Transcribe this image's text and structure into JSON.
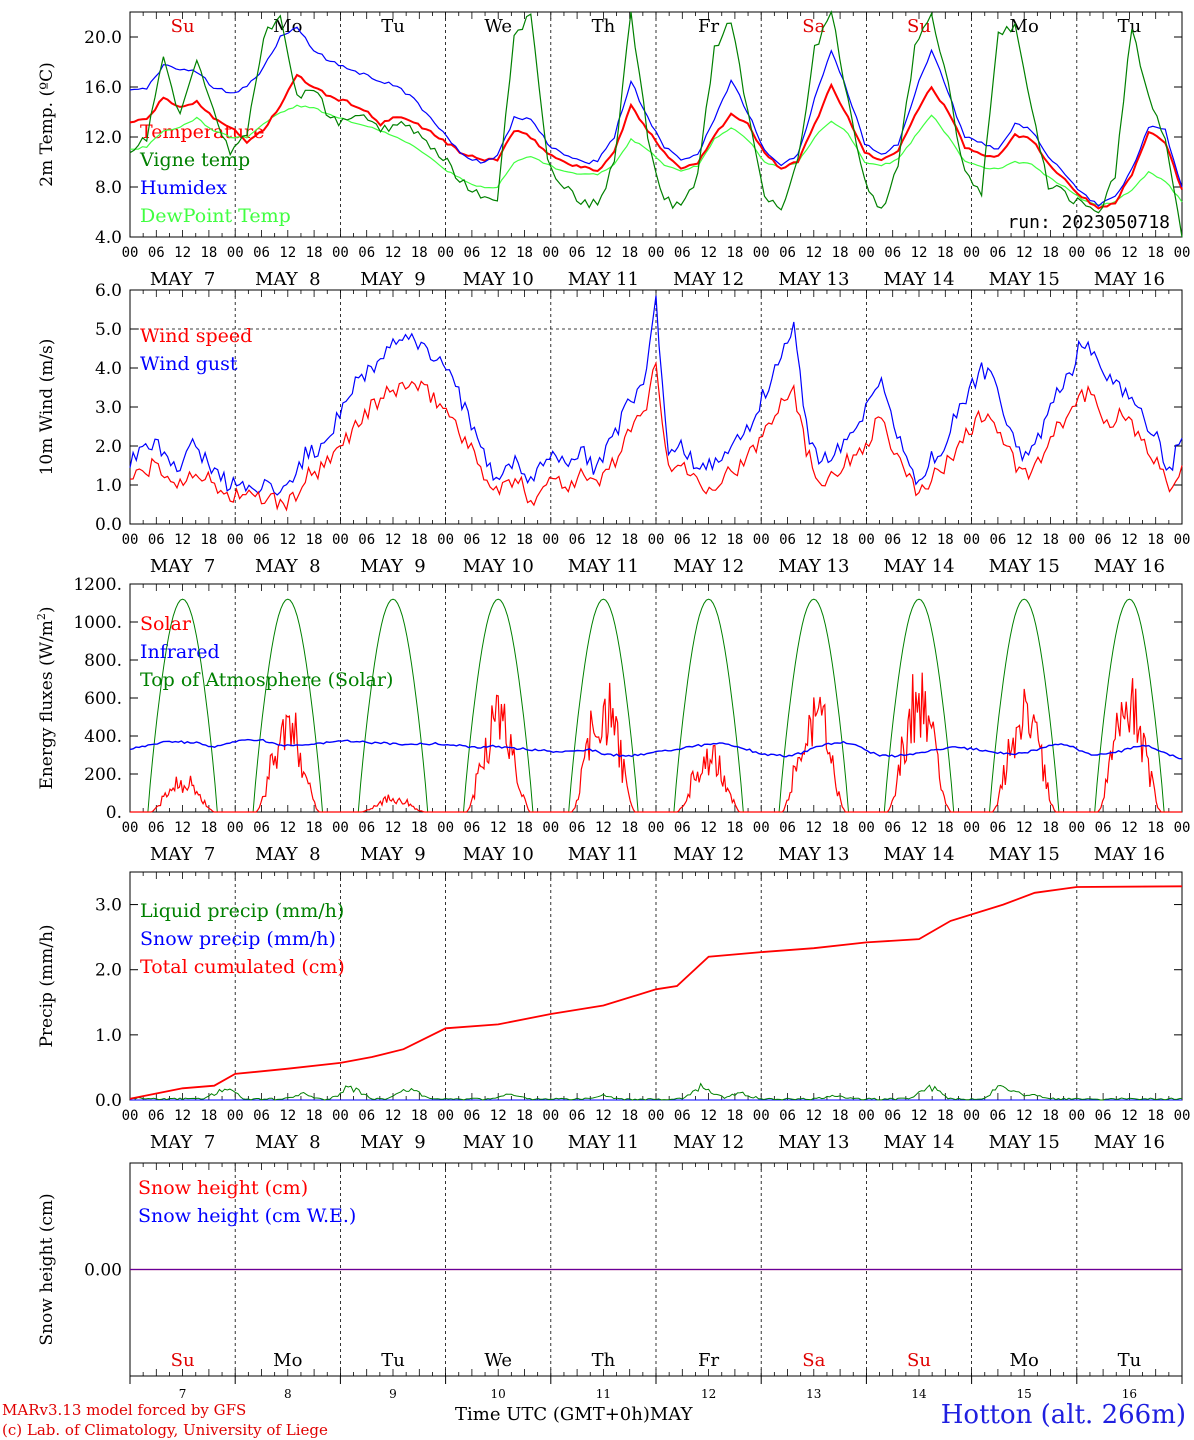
{
  "station": "Hotton (alt. 266m)",
  "credits": [
    "MARv3.13 model forced by GFS",
    "(c) Lab. of Climatology, University of Liege"
  ],
  "time_axis_label": "Time UTC (GMT+0h)",
  "month_label": "MAY",
  "run_label": "run: 2023050718",
  "hour_ticks": [
    "00",
    "06",
    "12",
    "18"
  ],
  "date_labels": [
    "MAY  7",
    "MAY  8",
    "MAY  9",
    "MAY 10",
    "MAY 11",
    "MAY 12",
    "MAY 13",
    "MAY 14",
    "MAY 15",
    "MAY 16"
  ],
  "day_numbers": [
    "7",
    "8",
    "9",
    "10",
    "11",
    "12",
    "13",
    "14",
    "15",
    "16"
  ],
  "weekdays": [
    {
      "label": "Su",
      "color": "#e00000"
    },
    {
      "label": "Mo",
      "color": "#000000"
    },
    {
      "label": "Tu",
      "color": "#000000"
    },
    {
      "label": "We",
      "color": "#000000"
    },
    {
      "label": "Th",
      "color": "#000000"
    },
    {
      "label": "Fr",
      "color": "#000000"
    },
    {
      "label": "Sa",
      "color": "#e00000"
    },
    {
      "label": "Su",
      "color": "#e00000"
    },
    {
      "label": "Mo",
      "color": "#000000"
    },
    {
      "label": "Tu",
      "color": "#000000"
    }
  ],
  "chart_data": [
    {
      "type": "line",
      "ylabel": "2m Temp. (ºC)",
      "ylim": [
        4.0,
        22.0
      ],
      "yticks": [
        "4.0",
        "8.0",
        "12.0",
        "16.0",
        "20.0"
      ],
      "series": [
        {
          "name": "Temperature",
          "color": "#ff0000",
          "values": [
            13.2,
            13.4,
            15.1,
            14.4,
            14.8,
            13.6,
            12.8,
            11.6,
            12.6,
            14.5,
            16.9,
            16.0,
            15.2,
            14.8,
            14.2,
            13.0,
            13.6,
            13.2,
            12.4,
            11.5,
            10.6,
            10.2,
            10.2,
            12.5,
            12.0,
            10.7,
            10.0,
            9.6,
            9.3,
            10.8,
            14.5,
            12.5,
            10.8,
            9.5,
            9.9,
            12.2,
            13.8,
            13.0,
            10.7,
            9.5,
            10.0,
            13.0,
            16.2,
            13.5,
            10.8,
            10.1,
            11.0,
            13.8,
            16.0,
            14.0,
            11.2,
            10.6,
            10.5,
            12.2,
            11.8,
            9.9,
            8.6,
            7.2,
            6.3,
            6.8,
            9.0,
            12.4,
            11.5,
            7.8
          ]
        },
        {
          "name": "Vigne temp",
          "color": "#008000",
          "values": [
            11.0,
            12.0,
            18.5,
            13.5,
            18.0,
            14.0,
            10.5,
            12.5,
            20.0,
            22.0,
            15.0,
            16.0,
            13.5,
            13.0,
            14.0,
            12.5,
            13.0,
            12.5,
            11.0,
            10.0,
            8.2,
            7.5,
            7.0,
            20.0,
            22.0,
            10.0,
            8.0,
            7.0,
            6.5,
            10.0,
            22.0,
            12.0,
            7.0,
            6.2,
            9.0,
            19.0,
            21.5,
            14.0,
            7.5,
            6.0,
            10.0,
            19.0,
            22.0,
            15.0,
            8.5,
            6.0,
            10.0,
            19.0,
            22.0,
            16.0,
            9.0,
            7.5,
            20.0,
            21.0,
            14.0,
            8.0,
            7.5,
            6.5,
            6.0,
            9.0,
            21.0,
            15.0,
            12.0,
            4.0
          ]
        },
        {
          "name": "Humidex",
          "color": "#0000ff",
          "values": [
            15.8,
            15.8,
            17.8,
            17.5,
            17.2,
            16.0,
            15.5,
            16.0,
            17.5,
            20.0,
            20.8,
            19.0,
            18.0,
            17.5,
            17.0,
            16.5,
            16.0,
            15.0,
            13.5,
            12.0,
            10.5,
            10.0,
            10.5,
            13.5,
            13.5,
            11.5,
            10.5,
            10.0,
            10.0,
            12.0,
            16.5,
            13.5,
            11.2,
            10.2,
            10.5,
            13.5,
            16.5,
            14.0,
            11.0,
            9.7,
            10.5,
            15.0,
            19.0,
            15.5,
            11.5,
            10.5,
            11.5,
            15.5,
            19.0,
            15.5,
            12.0,
            11.5,
            11.0,
            13.0,
            12.5,
            10.5,
            9.0,
            7.5,
            6.6,
            7.2,
            9.5,
            12.8,
            12.5,
            8.0
          ]
        },
        {
          "name": "DewPoint Temp",
          "color": "#40ff40",
          "values": [
            11.0,
            11.2,
            12.5,
            12.8,
            13.5,
            12.5,
            12.0,
            12.0,
            13.0,
            14.0,
            14.5,
            14.3,
            13.8,
            13.3,
            13.0,
            12.5,
            12.0,
            11.2,
            10.3,
            9.3,
            8.5,
            8.0,
            8.0,
            10.0,
            10.5,
            9.8,
            9.2,
            9.0,
            9.0,
            9.8,
            11.8,
            11.0,
            9.8,
            9.3,
            9.7,
            11.8,
            12.8,
            11.8,
            10.0,
            9.5,
            10.0,
            12.0,
            13.3,
            12.3,
            10.0,
            9.7,
            10.2,
            12.0,
            13.8,
            12.0,
            10.0,
            9.6,
            9.4,
            10.0,
            9.8,
            8.8,
            8.0,
            7.0,
            6.5,
            6.8,
            7.8,
            9.2,
            8.5,
            6.8
          ]
        }
      ]
    },
    {
      "type": "line",
      "ylabel": "10m Wind (m/s)",
      "ylim": [
        0.0,
        6.0
      ],
      "yticks": [
        "0.0",
        "1.0",
        "2.0",
        "3.0",
        "4.0",
        "5.0",
        "6.0"
      ],
      "series": [
        {
          "name": "Wind speed",
          "color": "#ff0000",
          "values": [
            1.2,
            1.3,
            1.5,
            1.2,
            1.0,
            1.4,
            1.2,
            0.9,
            0.7,
            0.8,
            0.6,
            0.7,
            0.5,
            0.6,
            1.2,
            1.3,
            1.6,
            2.1,
            2.5,
            2.9,
            3.2,
            3.4,
            3.6,
            3.5,
            3.3,
            3.0,
            2.6,
            2.0,
            1.5,
            0.8,
            1.0,
            1.1,
            0.6,
            1.0,
            1.2,
            1.0,
            1.3,
            1.0,
            1.3,
            1.8,
            2.4,
            2.8,
            4.2,
            1.3,
            1.6,
            1.2,
            1.0,
            1.1,
            1.4,
            1.5,
            2.0,
            2.6,
            3.2,
            3.5,
            1.9,
            1.1,
            1.3,
            1.5,
            1.8,
            2.2,
            2.8,
            1.8,
            1.2,
            0.8,
            1.2,
            1.4,
            2.0,
            2.4,
            2.8,
            2.6,
            2.0,
            1.3,
            1.3,
            1.8,
            2.4,
            2.8,
            3.4,
            3.2,
            2.6,
            2.8,
            2.5,
            2.0,
            1.6,
            1.0,
            1.5
          ]
        },
        {
          "name": "Wind gust",
          "color": "#0000ff",
          "values": [
            1.6,
            1.8,
            2.0,
            1.8,
            1.4,
            2.0,
            1.7,
            1.3,
            1.0,
            1.1,
            0.9,
            1.0,
            0.8,
            1.0,
            1.8,
            1.9,
            2.3,
            3.0,
            3.6,
            3.9,
            4.3,
            4.7,
            4.8,
            4.6,
            4.4,
            4.0,
            3.5,
            2.7,
            2.0,
            1.2,
            1.5,
            1.6,
            1.0,
            1.5,
            1.7,
            1.5,
            1.9,
            1.4,
            1.9,
            2.5,
            3.2,
            3.6,
            5.7,
            1.7,
            2.1,
            1.6,
            1.4,
            1.6,
            2.0,
            2.2,
            2.9,
            3.6,
            4.2,
            5.2,
            2.5,
            1.5,
            1.8,
            2.1,
            2.5,
            3.0,
            3.6,
            2.5,
            1.6,
            1.1,
            1.7,
            2.0,
            2.8,
            3.4,
            4.0,
            3.6,
            2.7,
            1.8,
            1.8,
            2.5,
            3.3,
            3.8,
            4.7,
            4.5,
            3.7,
            3.6,
            3.2,
            2.7,
            2.2,
            1.4,
            2.2
          ]
        }
      ]
    },
    {
      "type": "line",
      "ylabel": "Energy fluxes (W/m2)",
      "ylim": [
        0.0,
        1200.0
      ],
      "yticks": [
        "0.",
        "200.",
        "400.",
        "600.",
        "800.",
        "1000.",
        "1200."
      ],
      "series": [
        {
          "name": "Solar",
          "color": "#ff0000",
          "daily_peaks": [
            220,
            590,
            100,
            660,
            740,
            380,
            720,
            800,
            700,
            730
          ]
        },
        {
          "name": "Infrared",
          "color": "#0000ff",
          "values": [
            330,
            345,
            360,
            370,
            370,
            365,
            360,
            340,
            365,
            375,
            380,
            375,
            360,
            350,
            355,
            360,
            365,
            370,
            372,
            370,
            365,
            362,
            360,
            355,
            358,
            360,
            355,
            350,
            345,
            340,
            345,
            340,
            335,
            330,
            325,
            320,
            318,
            325,
            330,
            310,
            300,
            295,
            300,
            310,
            320,
            330,
            340,
            350,
            355,
            360,
            350,
            330,
            310,
            300,
            295,
            300,
            320,
            345,
            360,
            370,
            350,
            320,
            300,
            295,
            300,
            310,
            320,
            330,
            340,
            335,
            330,
            320,
            310,
            305,
            310,
            330,
            350,
            360,
            340,
            310,
            300,
            305,
            320,
            340,
            350,
            330,
            300,
            280
          ]
        },
        {
          "name": "Top of Atmosphere (Solar)",
          "color": "#008000",
          "daily_peak": 1120
        }
      ]
    },
    {
      "type": "line",
      "ylabel": "Precip (mm/h)",
      "ylim": [
        0.0,
        3.5
      ],
      "yticks": [
        "0.0",
        "1.0",
        "2.0",
        "3.0"
      ],
      "series": [
        {
          "name": "Liquid precip (mm/h)",
          "color": "#008000",
          "spikes": [
            [
              0.1,
              0.02
            ],
            [
              0.9,
              0.22
            ],
            [
              1.65,
              0.1
            ],
            [
              2.1,
              0.25
            ],
            [
              2.65,
              0.23
            ],
            [
              3.6,
              0.1
            ],
            [
              4.5,
              0.07
            ],
            [
              5.45,
              0.27
            ],
            [
              5.8,
              0.14
            ],
            [
              6.7,
              0.06
            ],
            [
              7.6,
              0.25
            ],
            [
              8.3,
              0.32
            ],
            [
              8.6,
              0.08
            ]
          ]
        },
        {
          "name": "Snow precip (mm/h)",
          "color": "#0000ff",
          "values": [
            0,
            0
          ]
        },
        {
          "name": "Total cumulated (cm)",
          "color": "#ff0000",
          "x": [
            0,
            0.5,
            0.8,
            1.0,
            1.5,
            2.0,
            2.3,
            2.6,
            3.0,
            3.5,
            4.0,
            4.5,
            5.0,
            5.2,
            5.5,
            6.0,
            6.5,
            7.0,
            7.5,
            7.8,
            8.3,
            8.6,
            9.0,
            10.0
          ],
          "values": [
            0.02,
            0.18,
            0.22,
            0.4,
            0.48,
            0.57,
            0.66,
            0.78,
            1.1,
            1.16,
            1.32,
            1.45,
            1.7,
            1.75,
            2.2,
            2.27,
            2.33,
            2.42,
            2.47,
            2.75,
            3.0,
            3.18,
            3.27,
            3.28
          ]
        }
      ]
    },
    {
      "type": "line",
      "ylabel": "Snow height (cm)",
      "ylim": [
        -1.0,
        1.0
      ],
      "yticks": [
        "0.00"
      ],
      "series": [
        {
          "name": "Snow height (cm)",
          "color": "#ff0000",
          "values": [
            0,
            0
          ]
        },
        {
          "name": "Snow height (cm W.E.)",
          "color": "#0000ff",
          "values": [
            0,
            0
          ]
        }
      ]
    }
  ]
}
